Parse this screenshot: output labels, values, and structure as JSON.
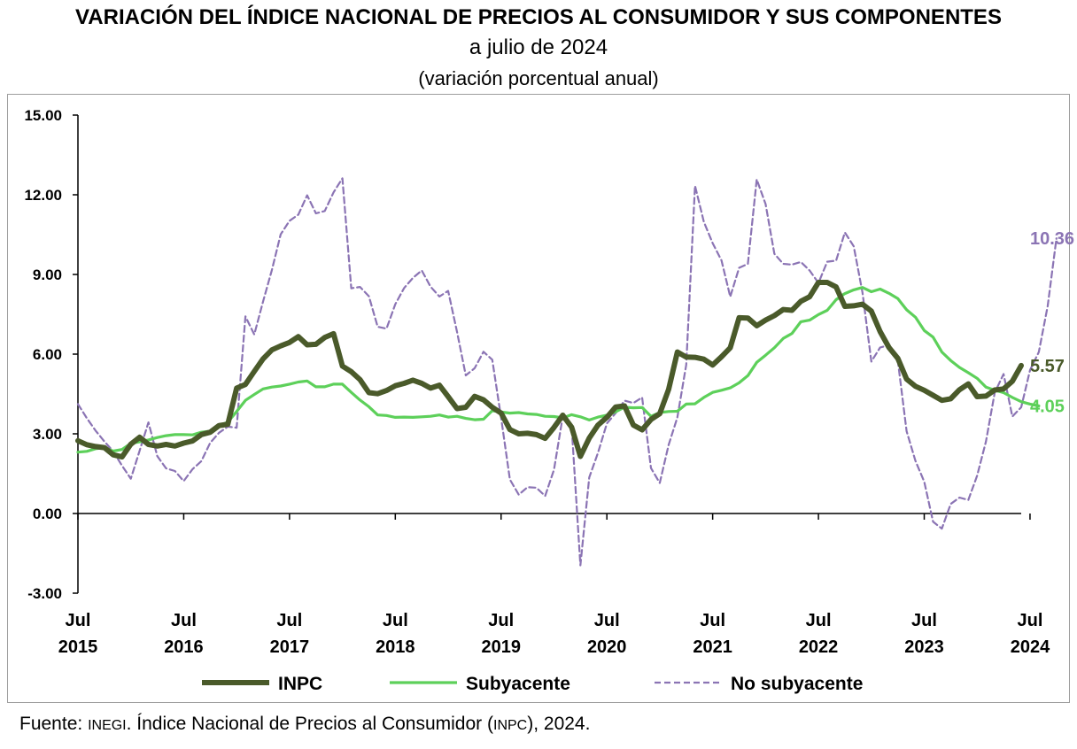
{
  "title": "VARIACIÓN DEL ÍNDICE NACIONAL DE PRECIOS AL CONSUMIDOR Y SUS COMPONENTES",
  "subtitle": "a julio de 2024",
  "subsubtitle": "(variación porcentual anual)",
  "source": {
    "prefix": "Fuente: ",
    "org": "INEGI",
    "middle": ". Índice Nacional de Precios al Consumidor (",
    "acronym": "INPC",
    "suffix": "), 2024."
  },
  "chart_data": {
    "type": "line",
    "title": "VARIACIÓN DEL ÍNDICE NACIONAL DE PRECIOS AL CONSUMIDOR Y SUS COMPONENTES",
    "xlabel": "",
    "ylabel": "",
    "ylim": [
      -3,
      15
    ],
    "y_ticks": [
      "15.00",
      "12.00",
      "9.00",
      "6.00",
      "3.00",
      "0.00",
      "-3.00"
    ],
    "y_tick_values": [
      15,
      12,
      9,
      6,
      3,
      0,
      -3
    ],
    "x_start": "Jul 2015",
    "x_end": "Jul 2024",
    "x_tick_labels": [
      {
        "month": "Jul",
        "year": "2015"
      },
      {
        "month": "Jul",
        "year": "2016"
      },
      {
        "month": "Jul",
        "year": "2017"
      },
      {
        "month": "Jul",
        "year": "2018"
      },
      {
        "month": "Jul",
        "year": "2019"
      },
      {
        "month": "Jul",
        "year": "2020"
      },
      {
        "month": "Jul",
        "year": "2021"
      },
      {
        "month": "Jul",
        "year": "2022"
      },
      {
        "month": "Jul",
        "year": "2023"
      },
      {
        "month": "Jul",
        "year": "2024"
      }
    ],
    "legend_position": "bottom",
    "series": [
      {
        "name": "INPC",
        "color": "#4a5a2a",
        "style": "solid-thick",
        "end_label": "5.57",
        "values": [
          2.74,
          2.59,
          2.52,
          2.48,
          2.21,
          2.13,
          2.61,
          2.87,
          2.6,
          2.54,
          2.6,
          2.54,
          2.65,
          2.73,
          2.97,
          3.06,
          3.31,
          3.36,
          4.72,
          4.86,
          5.35,
          5.82,
          6.16,
          6.31,
          6.44,
          6.66,
          6.35,
          6.37,
          6.63,
          6.77,
          5.55,
          5.34,
          5.04,
          4.55,
          4.51,
          4.63,
          4.81,
          4.9,
          5.02,
          4.9,
          4.72,
          4.83,
          4.4,
          3.95,
          4.0,
          4.41,
          4.28,
          4.0,
          3.78,
          3.16,
          3.0,
          3.02,
          2.97,
          2.83,
          3.24,
          3.7,
          3.25,
          2.15,
          2.84,
          3.33,
          3.62,
          4.01,
          4.05,
          3.33,
          3.15,
          3.54,
          3.76,
          4.67,
          6.08,
          5.89,
          5.88,
          5.81,
          5.59,
          5.9,
          6.24,
          7.37,
          7.36,
          7.07,
          7.28,
          7.45,
          7.68,
          7.65,
          7.99,
          8.16,
          8.7,
          8.7,
          8.53,
          7.8,
          7.82,
          7.88,
          7.62,
          6.85,
          6.25,
          5.84,
          5.06,
          4.79,
          4.64,
          4.45,
          4.26,
          4.32,
          4.66,
          4.88,
          4.4,
          4.42,
          4.65,
          4.69,
          4.98,
          5.57
        ]
      },
      {
        "name": "Subyacente",
        "color": "#5dd05a",
        "style": "solid",
        "end_label": "4.05",
        "values": [
          2.31,
          2.34,
          2.44,
          2.48,
          2.35,
          2.41,
          2.64,
          2.7,
          2.77,
          2.86,
          2.93,
          2.97,
          2.97,
          2.96,
          3.06,
          3.1,
          3.3,
          3.44,
          3.84,
          4.26,
          4.48,
          4.69,
          4.76,
          4.8,
          4.87,
          4.95,
          4.99,
          4.77,
          4.77,
          4.87,
          4.87,
          4.56,
          4.27,
          4.02,
          3.71,
          3.69,
          3.62,
          3.63,
          3.62,
          3.64,
          3.66,
          3.71,
          3.63,
          3.66,
          3.58,
          3.53,
          3.55,
          3.87,
          3.82,
          3.78,
          3.8,
          3.75,
          3.73,
          3.66,
          3.65,
          3.6,
          3.72,
          3.64,
          3.52,
          3.63,
          3.7,
          3.83,
          4.0,
          3.98,
          3.99,
          3.66,
          3.8,
          3.84,
          3.85,
          4.12,
          4.13,
          4.37,
          4.56,
          4.64,
          4.73,
          4.92,
          5.19,
          5.69,
          5.96,
          6.24,
          6.59,
          6.78,
          7.22,
          7.28,
          7.49,
          7.65,
          8.05,
          8.28,
          8.42,
          8.51,
          8.35,
          8.45,
          8.29,
          8.09,
          7.67,
          7.39,
          6.89,
          6.64,
          6.08,
          5.76,
          5.5,
          5.3,
          5.09,
          4.76,
          4.64,
          4.55,
          4.37,
          4.21,
          4.12,
          4.05
        ]
      },
      {
        "name": "No subyacente",
        "color": "#8b74b4",
        "style": "dashed",
        "end_label": "10.36",
        "values": [
          4.12,
          3.59,
          3.12,
          2.71,
          2.34,
          1.8,
          1.31,
          2.37,
          3.43,
          2.16,
          1.7,
          1.6,
          1.22,
          1.67,
          1.97,
          2.66,
          3.04,
          3.27,
          3.23,
          7.42,
          6.74,
          7.98,
          9.17,
          10.51,
          11.02,
          11.25,
          11.98,
          11.3,
          11.39,
          12.09,
          12.62,
          8.48,
          8.53,
          8.18,
          7.03,
          6.96,
          7.88,
          8.49,
          8.87,
          9.15,
          8.54,
          8.17,
          8.38,
          6.84,
          5.2,
          5.47,
          6.09,
          5.79,
          3.6,
          1.28,
          0.71,
          0.99,
          0.97,
          0.66,
          1.65,
          3.66,
          3.29,
          -1.95,
          1.36,
          2.29,
          3.39,
          3.78,
          4.25,
          4.16,
          4.37,
          1.71,
          1.15,
          2.58,
          3.62,
          5.6,
          12.34,
          10.98,
          10.18,
          9.53,
          8.16,
          9.25,
          9.4,
          12.58,
          11.65,
          9.78,
          9.4,
          9.37,
          9.47,
          9.15,
          8.68,
          9.48,
          9.52,
          10.58,
          10.06,
          8.32,
          5.72,
          6.25,
          6.34,
          5.76,
          3.1,
          1.98,
          1.2,
          -0.31,
          -0.57,
          0.36,
          0.6,
          0.51,
          1.42,
          2.71,
          4.55,
          5.25,
          3.65,
          4.0,
          5.4,
          6.08,
          7.81,
          10.36
        ]
      }
    ]
  }
}
